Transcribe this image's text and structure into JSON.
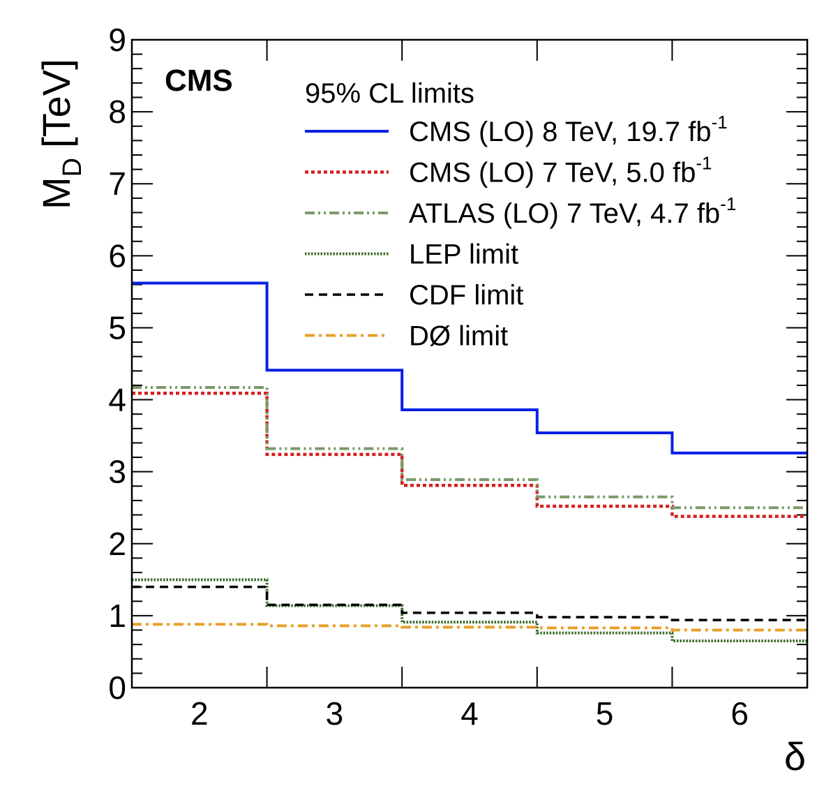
{
  "chart_data": {
    "type": "line",
    "step": true,
    "tag": "CMS",
    "xlabel": "δ",
    "ylabel_main": "M",
    "ylabel_sub": "D",
    "ylabel_unit": "[TeV]",
    "xlim": [
      1.5,
      6.5
    ],
    "ylim": [
      0,
      9
    ],
    "xticks": [
      2,
      3,
      4,
      5,
      6
    ],
    "yticks": [
      0,
      1,
      2,
      3,
      4,
      5,
      6,
      7,
      8,
      9
    ],
    "bin_edges": [
      1.5,
      2.5,
      3.5,
      4.5,
      5.5,
      6.5
    ],
    "legend_title": "95% CL limits",
    "legend_position": "top-right",
    "series": [
      {
        "name": "CMS (LO) 8 TeV, 19.7 fb",
        "sup": "-1",
        "color": "#0a1fe6",
        "style": "solid",
        "values": [
          5.62,
          4.41,
          3.86,
          3.54,
          3.26
        ]
      },
      {
        "name": "CMS (LO) 7 TeV, 5.0 fb",
        "sup": "-1",
        "color": "#d42020",
        "style": "dotted",
        "values": [
          4.09,
          3.24,
          2.81,
          2.52,
          2.38
        ]
      },
      {
        "name": "ATLAS (LO) 7 TeV, 4.7 fb",
        "sup": "-1",
        "color": "#7a9a6a",
        "style": "dashdotdot",
        "values": [
          4.17,
          3.32,
          2.89,
          2.65,
          2.5
        ]
      },
      {
        "name": "LEP limit",
        "sup": "",
        "color": "#3a6a2a",
        "style": "finedot",
        "values": [
          1.5,
          1.14,
          0.91,
          0.76,
          0.65
        ]
      },
      {
        "name": "CDF limit",
        "sup": "",
        "color": "#000000",
        "style": "dashed",
        "values": [
          1.4,
          1.15,
          1.04,
          0.98,
          0.94
        ]
      },
      {
        "name": "DØ limit",
        "sup": "",
        "color": "#e8a028",
        "style": "dashdot",
        "values": [
          0.88,
          0.86,
          0.84,
          0.83,
          0.8
        ]
      }
    ]
  }
}
